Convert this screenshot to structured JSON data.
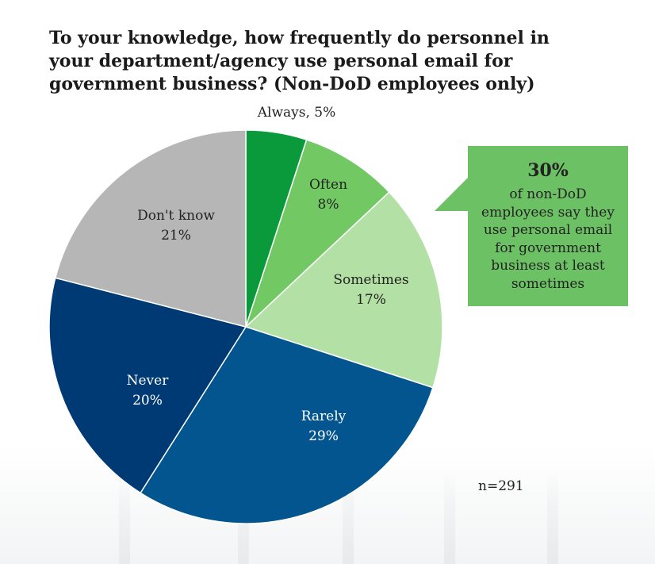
{
  "title": "To your knowledge, how frequently do personnel in your department/agency use personal email for government business? (Non-DoD employees only)",
  "callout": {
    "percent": "30%",
    "text": "of non-DoD employees say they use personal email for government business at least sometimes"
  },
  "sample_size": "n=291",
  "chart_data": {
    "type": "pie",
    "title": "To your knowledge, how frequently do personnel in your department/agency use personal email for government business? (Non-DoD employees only)",
    "slices": [
      {
        "name": "Always",
        "value": 5,
        "label": "5%",
        "color": "#0a9a3c"
      },
      {
        "name": "Often",
        "value": 8,
        "label": "8%",
        "color": "#72c964"
      },
      {
        "name": "Sometimes",
        "value": 17,
        "label": "17%",
        "color": "#b3e0a4"
      },
      {
        "name": "Rarely",
        "value": 29,
        "label": "29%",
        "color": "#02558f"
      },
      {
        "name": "Never",
        "value": 20,
        "label": "20%",
        "color": "#003a75"
      },
      {
        "name": "Don't know",
        "value": 21,
        "label": "21%",
        "color": "#b6b6b6"
      }
    ],
    "label_colors": {
      "Always": "#222222",
      "Often": "#222222",
      "Sometimes": "#222222",
      "Rarely": "#ffffff",
      "Never": "#ffffff",
      "Don't know": "#222222"
    }
  }
}
